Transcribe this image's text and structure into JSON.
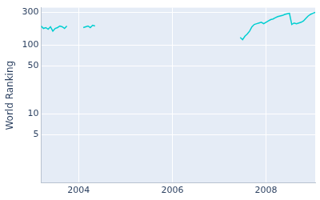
{
  "chart_data": {
    "type": "line",
    "y_label": "World Ranking",
    "x": [
      2003.2,
      2003.25,
      2003.3,
      2003.35,
      2003.4,
      2003.45,
      2003.5,
      2003.55,
      2003.6,
      2003.65,
      2003.7,
      2003.75,
      2003.9,
      2004.1,
      2004.15,
      2004.2,
      2004.25,
      2004.3,
      2004.35,
      2005.0,
      2007.45,
      2007.5,
      2007.55,
      2007.6,
      2007.65,
      2007.7,
      2007.75,
      2007.8,
      2007.85,
      2007.9,
      2007.95,
      2008.0,
      2008.05,
      2008.1,
      2008.15,
      2008.2,
      2008.25,
      2008.3,
      2008.35,
      2008.4,
      2008.45,
      2008.5,
      2008.55,
      2008.6,
      2008.65,
      2008.7,
      2008.75,
      2008.8,
      2008.85,
      2008.9,
      2008.95,
      2009.0,
      2009.05
    ],
    "values": [
      190,
      175,
      180,
      170,
      185,
      160,
      175,
      180,
      190,
      185,
      175,
      190,
      null,
      180,
      185,
      190,
      180,
      195,
      190,
      null,
      130,
      120,
      135,
      145,
      160,
      185,
      200,
      205,
      210,
      215,
      205,
      215,
      225,
      235,
      240,
      250,
      260,
      265,
      270,
      280,
      285,
      290,
      200,
      210,
      205,
      210,
      215,
      225,
      245,
      265,
      280,
      290,
      300
    ],
    "color": "#00ced1",
    "log": "y",
    "xlim": [
      2003.2,
      2009.05
    ],
    "xticks": [
      2004,
      2006,
      2008
    ],
    "ylim": [
      1,
      350
    ],
    "yticks": [
      5,
      10,
      50,
      100,
      300
    ],
    "grid": true
  }
}
